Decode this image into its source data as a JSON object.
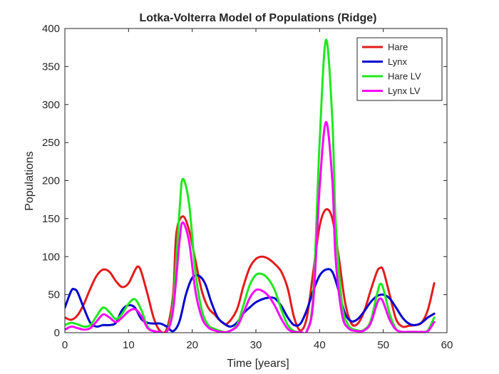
{
  "chart_data": {
    "type": "line",
    "title": "Lotka-Volterra Model of Populations (Ridge)",
    "xlabel": "Time [years]",
    "ylabel": "Populations",
    "xlim": [
      0,
      60
    ],
    "ylim": [
      0,
      400
    ],
    "xticks": [
      0,
      10,
      20,
      30,
      40,
      50,
      60
    ],
    "yticks": [
      0,
      50,
      100,
      150,
      200,
      250,
      300,
      350,
      400
    ],
    "grid": false,
    "legend_position": "top-right",
    "series": [
      {
        "name": "Hare",
        "color": "#e41a1c",
        "points": [
          [
            0,
            20
          ],
          [
            1,
            17
          ],
          [
            2,
            23
          ],
          [
            3,
            38
          ],
          [
            4,
            58
          ],
          [
            5,
            75
          ],
          [
            6,
            83
          ],
          [
            7,
            80
          ],
          [
            8,
            68
          ],
          [
            9,
            60
          ],
          [
            10,
            65
          ],
          [
            11,
            82
          ],
          [
            11.5,
            87
          ],
          [
            12,
            80
          ],
          [
            13,
            50
          ],
          [
            14,
            18
          ],
          [
            15,
            2
          ],
          [
            16,
            5
          ],
          [
            17,
            50
          ],
          [
            17.5,
            130
          ],
          [
            18.5,
            153
          ],
          [
            19.5,
            135
          ],
          [
            20.5,
            95
          ],
          [
            21.5,
            55
          ],
          [
            22.5,
            33
          ],
          [
            23.5,
            24
          ],
          [
            24.5,
            15
          ],
          [
            25.5,
            12
          ],
          [
            27,
            30
          ],
          [
            28,
            60
          ],
          [
            29,
            85
          ],
          [
            30,
            97
          ],
          [
            31,
            100
          ],
          [
            32,
            97
          ],
          [
            33,
            90
          ],
          [
            34,
            80
          ],
          [
            35,
            58
          ],
          [
            36,
            20
          ],
          [
            37,
            3
          ],
          [
            38,
            20
          ],
          [
            39,
            80
          ],
          [
            40,
            140
          ],
          [
            41,
            162
          ],
          [
            42,
            150
          ],
          [
            43,
            100
          ],
          [
            44,
            40
          ],
          [
            45,
            12
          ],
          [
            46,
            12
          ],
          [
            47,
            28
          ],
          [
            48,
            55
          ],
          [
            49,
            80
          ],
          [
            49.5,
            85
          ],
          [
            50,
            82
          ],
          [
            51,
            50
          ],
          [
            52,
            18
          ],
          [
            53,
            8
          ],
          [
            54,
            9
          ],
          [
            55,
            10
          ],
          [
            56,
            13
          ],
          [
            57,
            30
          ],
          [
            58,
            65
          ]
        ]
      },
      {
        "name": "Lynx",
        "color": "#0000d0",
        "points": [
          [
            0,
            33
          ],
          [
            1,
            55
          ],
          [
            1.5,
            57
          ],
          [
            2,
            53
          ],
          [
            3,
            32
          ],
          [
            4,
            13
          ],
          [
            5,
            8
          ],
          [
            6,
            10
          ],
          [
            7,
            10
          ],
          [
            8,
            13
          ],
          [
            9,
            30
          ],
          [
            10,
            36
          ],
          [
            11,
            33
          ],
          [
            12,
            18
          ],
          [
            13,
            13
          ],
          [
            14,
            12
          ],
          [
            15,
            12
          ],
          [
            16,
            8
          ],
          [
            17,
            2
          ],
          [
            18,
            15
          ],
          [
            19,
            50
          ],
          [
            20,
            72
          ],
          [
            21,
            75
          ],
          [
            22,
            65
          ],
          [
            23,
            40
          ],
          [
            24,
            20
          ],
          [
            25,
            12
          ],
          [
            26,
            8
          ],
          [
            27,
            13
          ],
          [
            28,
            25
          ],
          [
            29,
            33
          ],
          [
            30,
            40
          ],
          [
            31,
            44
          ],
          [
            32,
            46
          ],
          [
            33,
            45
          ],
          [
            34,
            35
          ],
          [
            35,
            20
          ],
          [
            36,
            10
          ],
          [
            37,
            12
          ],
          [
            38,
            30
          ],
          [
            39,
            55
          ],
          [
            40,
            75
          ],
          [
            41,
            83
          ],
          [
            42,
            80
          ],
          [
            43,
            55
          ],
          [
            44,
            25
          ],
          [
            45,
            15
          ],
          [
            46,
            18
          ],
          [
            47,
            28
          ],
          [
            48,
            40
          ],
          [
            49,
            48
          ],
          [
            50,
            50
          ],
          [
            51,
            45
          ],
          [
            52,
            33
          ],
          [
            53,
            20
          ],
          [
            54,
            12
          ],
          [
            55,
            10
          ],
          [
            56,
            13
          ],
          [
            57,
            20
          ],
          [
            58,
            25
          ]
        ]
      },
      {
        "name": "Hare LV",
        "color": "#1ee81e",
        "points": [
          [
            0,
            10
          ],
          [
            1,
            13
          ],
          [
            2,
            11
          ],
          [
            3,
            8
          ],
          [
            4,
            10
          ],
          [
            5,
            22
          ],
          [
            6,
            33
          ],
          [
            7,
            27
          ],
          [
            8,
            18
          ],
          [
            9,
            25
          ],
          [
            10,
            38
          ],
          [
            11,
            44
          ],
          [
            12,
            30
          ],
          [
            13,
            8
          ],
          [
            14,
            2
          ],
          [
            15,
            1
          ],
          [
            16,
            1
          ],
          [
            17,
            40
          ],
          [
            18,
            160
          ],
          [
            18.5,
            202
          ],
          [
            19.5,
            170
          ],
          [
            20.5,
            80
          ],
          [
            21.5,
            30
          ],
          [
            22.5,
            10
          ],
          [
            23.5,
            5
          ],
          [
            24.5,
            2
          ],
          [
            25.5,
            1
          ],
          [
            27,
            10
          ],
          [
            28,
            35
          ],
          [
            29,
            62
          ],
          [
            30,
            76
          ],
          [
            31,
            77
          ],
          [
            32,
            70
          ],
          [
            33,
            55
          ],
          [
            34,
            30
          ],
          [
            35,
            10
          ],
          [
            36,
            2
          ],
          [
            37,
            1
          ],
          [
            38,
            2
          ],
          [
            39,
            50
          ],
          [
            40,
            250
          ],
          [
            41,
            385
          ],
          [
            42,
            280
          ],
          [
            42.5,
            150
          ],
          [
            43.5,
            40
          ],
          [
            44.5,
            10
          ],
          [
            46,
            3
          ],
          [
            47,
            4
          ],
          [
            48,
            15
          ],
          [
            49,
            50
          ],
          [
            49.5,
            64
          ],
          [
            50,
            58
          ],
          [
            51,
            25
          ],
          [
            52,
            5
          ],
          [
            53,
            1
          ],
          [
            54,
            1
          ],
          [
            55,
            1
          ],
          [
            56,
            1
          ],
          [
            57,
            3
          ],
          [
            58,
            20
          ]
        ]
      },
      {
        "name": "Lynx LV",
        "color": "#ff00ff",
        "points": [
          [
            0,
            4
          ],
          [
            1,
            8
          ],
          [
            2,
            6
          ],
          [
            3,
            4
          ],
          [
            4,
            6
          ],
          [
            5,
            15
          ],
          [
            6,
            24
          ],
          [
            7,
            20
          ],
          [
            8,
            14
          ],
          [
            9,
            20
          ],
          [
            10,
            28
          ],
          [
            11,
            31
          ],
          [
            12,
            22
          ],
          [
            13,
            6
          ],
          [
            14,
            2
          ],
          [
            15,
            1
          ],
          [
            16,
            1
          ],
          [
            17,
            30
          ],
          [
            18,
            120
          ],
          [
            18.5,
            145
          ],
          [
            19.5,
            120
          ],
          [
            20.5,
            55
          ],
          [
            21.5,
            20
          ],
          [
            22.5,
            7
          ],
          [
            23.5,
            3
          ],
          [
            24.5,
            1
          ],
          [
            25.5,
            1
          ],
          [
            27,
            8
          ],
          [
            28,
            25
          ],
          [
            29,
            45
          ],
          [
            30,
            56
          ],
          [
            31,
            55
          ],
          [
            32,
            48
          ],
          [
            33,
            35
          ],
          [
            34,
            18
          ],
          [
            35,
            5
          ],
          [
            36,
            1
          ],
          [
            37,
            1
          ],
          [
            38,
            2
          ],
          [
            39,
            40
          ],
          [
            40,
            190
          ],
          [
            41,
            277
          ],
          [
            42,
            200
          ],
          [
            42.5,
            100
          ],
          [
            43.5,
            25
          ],
          [
            44.5,
            6
          ],
          [
            46,
            2
          ],
          [
            47,
            3
          ],
          [
            48,
            12
          ],
          [
            49,
            38
          ],
          [
            49.5,
            45
          ],
          [
            50,
            40
          ],
          [
            51,
            17
          ],
          [
            52,
            4
          ],
          [
            53,
            1
          ],
          [
            54,
            1
          ],
          [
            55,
            1
          ],
          [
            56,
            1
          ],
          [
            57,
            2
          ],
          [
            58,
            14
          ]
        ]
      }
    ]
  }
}
